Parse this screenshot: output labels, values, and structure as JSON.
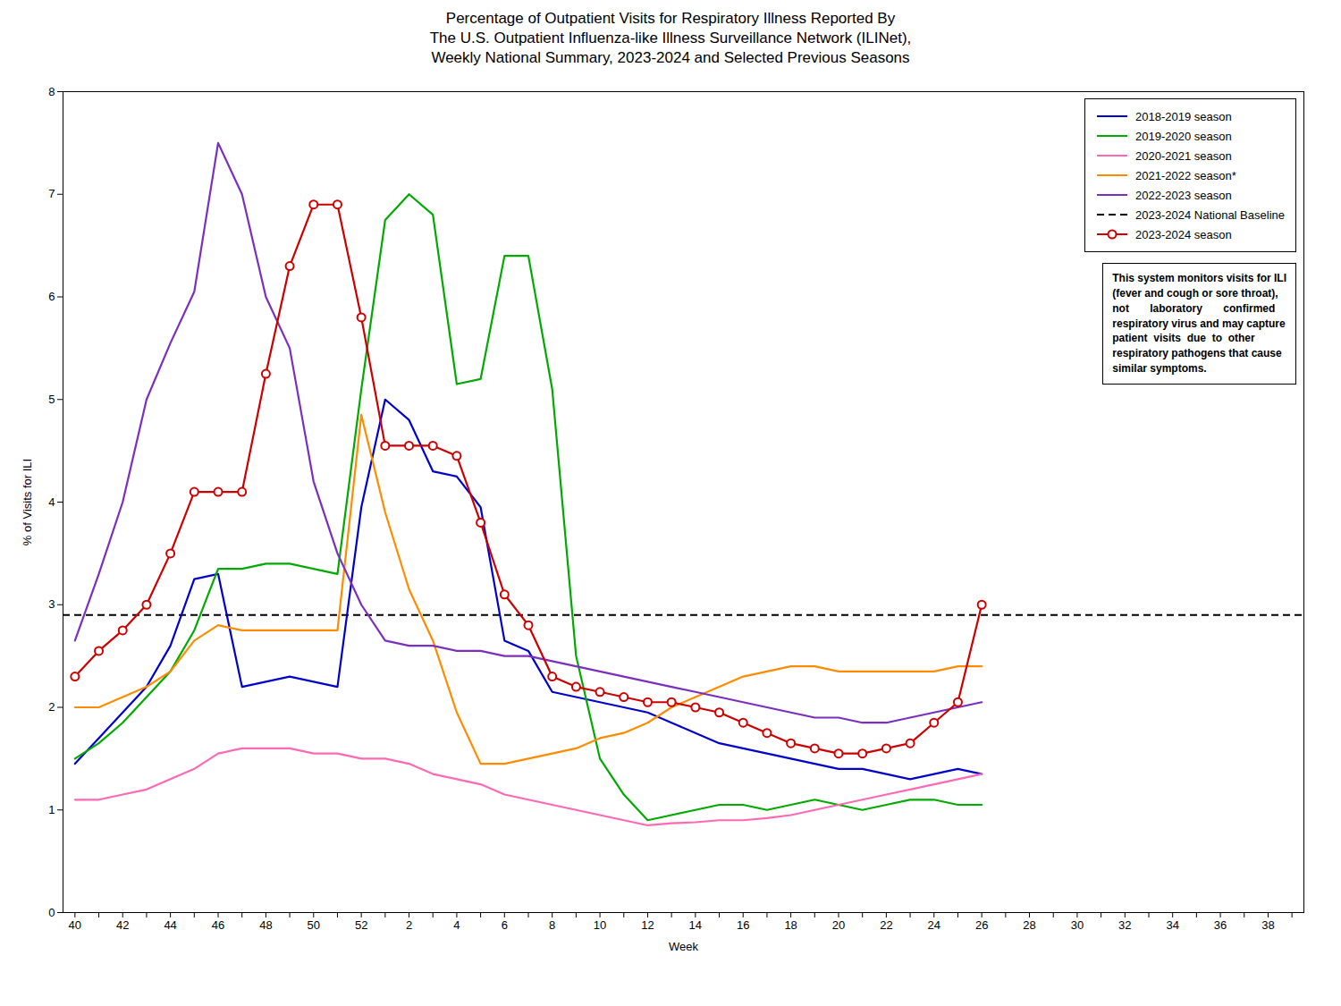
{
  "chart_data": {
    "type": "line",
    "title": "Percentage of Outpatient Visits for Respiratory Illness Reported By\nThe U.S. Outpatient Influenza-like Illness Surveillance Network (ILINet),\nWeekly National Summary, 2023-2024 and Selected Previous Seasons",
    "xlabel": "Week",
    "ylabel": "% of Visits for ILI",
    "ylim": [
      0,
      8
    ],
    "yticks": [
      0,
      1,
      2,
      3,
      4,
      5,
      6,
      7,
      8
    ],
    "legend": "upper right",
    "annotation": "This system monitors visits for ILI\n(fever and cough or sore throat),\nnot       laboratory       confirmed\nrespiratory virus and may capture\npatient  visits  due  to  other\nrespiratory pathogens that cause\nsimilar symptoms.",
    "categories": [
      "40",
      null,
      "42",
      null,
      "44",
      null,
      "46",
      null,
      "48",
      null,
      "50",
      null,
      "52",
      null,
      "2",
      null,
      "4",
      null,
      "6",
      null,
      "8",
      null,
      "10",
      null,
      "12",
      null,
      "14",
      null,
      "16",
      null,
      "18",
      null,
      "20",
      null,
      "22",
      null,
      "24",
      null,
      "26",
      null,
      "28",
      null,
      "30",
      null,
      "32",
      null,
      "34",
      null,
      "36",
      null,
      "38",
      null
    ],
    "series": [
      {
        "name": "2018-2019 season",
        "color": "#0000CC",
        "values": [
          1.45,
          1.7,
          1.95,
          2.2,
          2.6,
          3.25,
          3.3,
          2.2,
          2.25,
          2.3,
          2.25,
          2.2,
          3.95,
          5.0,
          4.8,
          4.3,
          4.25,
          3.95,
          2.65,
          2.55,
          2.15,
          2.1,
          2.05,
          2.0,
          1.95,
          1.85,
          1.75,
          1.65,
          1.6,
          1.55,
          1.5,
          1.45,
          1.4,
          1.4,
          1.35,
          1.3,
          1.35,
          1.4,
          1.35,
          null,
          null,
          null,
          null,
          null,
          null,
          null,
          null,
          null,
          null,
          null,
          null,
          null
        ]
      },
      {
        "name": "2019-2020 season",
        "color": "#00AA00",
        "values": [
          1.5,
          1.65,
          1.85,
          2.1,
          2.35,
          2.75,
          3.35,
          3.35,
          3.4,
          3.4,
          3.35,
          3.3,
          5.1,
          6.75,
          7.0,
          6.8,
          5.15,
          5.2,
          6.4,
          6.4,
          5.1,
          2.5,
          1.5,
          1.15,
          0.9,
          0.95,
          1.0,
          1.05,
          1.05,
          1.0,
          1.05,
          1.1,
          1.05,
          1.0,
          1.05,
          1.1,
          1.1,
          1.05,
          1.05,
          null,
          null,
          null,
          null,
          null,
          null,
          null,
          null,
          null,
          null,
          null,
          null,
          null
        ]
      },
      {
        "name": "2020-2021 season",
        "color": "#FF69B4",
        "values": [
          1.1,
          1.1,
          1.15,
          1.2,
          1.3,
          1.4,
          1.55,
          1.6,
          1.6,
          1.6,
          1.55,
          1.55,
          1.5,
          1.5,
          1.45,
          1.35,
          1.3,
          1.25,
          1.15,
          1.1,
          1.05,
          1.0,
          0.95,
          0.9,
          0.85,
          0.87,
          0.88,
          0.9,
          0.9,
          0.92,
          0.95,
          1.0,
          1.05,
          1.1,
          1.15,
          1.2,
          1.25,
          1.3,
          1.35,
          null,
          null,
          null,
          null,
          null,
          null,
          null,
          null,
          null,
          null,
          null,
          null,
          null
        ]
      },
      {
        "name": "2021-2022 season*",
        "color": "#FF8C00",
        "values": [
          2.0,
          2.0,
          2.1,
          2.2,
          2.35,
          2.65,
          2.8,
          2.75,
          2.75,
          2.75,
          2.75,
          2.75,
          4.85,
          3.9,
          3.15,
          2.65,
          1.95,
          1.45,
          1.45,
          1.5,
          1.55,
          1.6,
          1.7,
          1.75,
          1.85,
          2.0,
          2.1,
          2.2,
          2.3,
          2.35,
          2.4,
          2.4,
          2.35,
          2.35,
          2.35,
          2.35,
          2.35,
          2.4,
          2.4,
          null,
          null,
          null,
          null,
          null,
          null,
          null,
          null,
          null,
          null,
          null,
          null,
          null
        ]
      },
      {
        "name": "2022-2023 season",
        "color": "#7B2FBE",
        "values": [
          2.65,
          3.3,
          4.0,
          5.0,
          5.55,
          6.05,
          7.5,
          7.0,
          6.0,
          5.5,
          4.2,
          3.5,
          3.0,
          2.65,
          2.6,
          2.6,
          2.55,
          2.55,
          2.5,
          2.5,
          2.45,
          2.4,
          2.35,
          2.3,
          2.25,
          2.2,
          2.15,
          2.1,
          2.05,
          2.0,
          1.95,
          1.9,
          1.9,
          1.85,
          1.85,
          1.9,
          1.95,
          2.0,
          2.05,
          null,
          null,
          null,
          null,
          null,
          null,
          null,
          null,
          null,
          null,
          null,
          null,
          null
        ]
      },
      {
        "name": "2023-2024 National Baseline",
        "type": "rule",
        "color": "#000000",
        "line_style": "dashed",
        "value": 2.9
      },
      {
        "name": "2023-2024 season",
        "color": "#CC0000",
        "marker": "circle",
        "values": [
          2.3,
          2.55,
          2.75,
          3.0,
          3.5,
          4.1,
          4.1,
          4.1,
          5.25,
          6.3,
          6.9,
          6.9,
          5.8,
          4.55,
          4.55,
          4.55,
          4.45,
          3.8,
          3.1,
          2.8,
          2.3,
          2.2,
          2.15,
          2.1,
          2.05,
          2.05,
          2.0,
          1.95,
          1.85,
          1.75,
          1.65,
          1.6,
          1.55,
          1.55,
          1.6,
          1.65,
          1.85,
          2.05,
          3.0,
          null,
          null,
          null,
          null,
          null,
          null,
          null,
          null,
          null,
          null,
          null,
          null,
          null
        ]
      }
    ]
  }
}
